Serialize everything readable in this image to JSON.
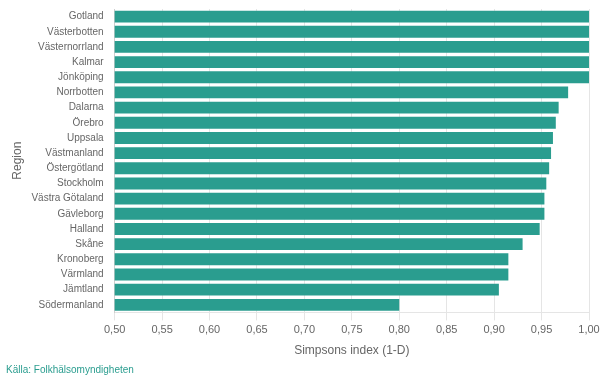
{
  "chart_data": {
    "type": "bar",
    "orientation": "horizontal",
    "xlabel": "Simpsons index (1-D)",
    "ylabel": "Region",
    "annotations": [
      "Källa: Folkhälsomyndigheten"
    ],
    "categories": [
      "Södermanland",
      "Jämtland",
      "Värmland",
      "Kronoberg",
      "Skåne",
      "Halland",
      "Gävleborg",
      "Västra Götaland",
      "Stockholm",
      "Östergötland",
      "Västmanland",
      "Uppsala",
      "Örebro",
      "Dalarna",
      "Norrbotten",
      "Jönköping",
      "Kalmar",
      "Västernorrland",
      "Västerbotten",
      "Gotland"
    ],
    "values": [
      0.8,
      0.905,
      0.915,
      0.915,
      0.93,
      0.948,
      0.953,
      0.953,
      0.955,
      0.958,
      0.96,
      0.962,
      0.965,
      0.968,
      0.978,
      1.0,
      1.0,
      1.0,
      1.0,
      1.0
    ],
    "color": "#2a9d8f",
    "xlim": [
      0.5,
      1.0
    ],
    "xticks": [
      {
        "value": 0.5,
        "label": "0,50"
      },
      {
        "value": 0.55,
        "label": "0,55"
      },
      {
        "value": 0.6,
        "label": "0,60"
      },
      {
        "value": 0.65,
        "label": "0,65"
      },
      {
        "value": 0.7,
        "label": "0,70"
      },
      {
        "value": 0.75,
        "label": "0,75"
      },
      {
        "value": 0.8,
        "label": "0,80"
      },
      {
        "value": 0.85,
        "label": "0,85"
      },
      {
        "value": 0.9,
        "label": "0,90"
      },
      {
        "value": 0.95,
        "label": "0,95"
      },
      {
        "value": 1.0,
        "label": "1,00"
      }
    ],
    "grid": true
  }
}
